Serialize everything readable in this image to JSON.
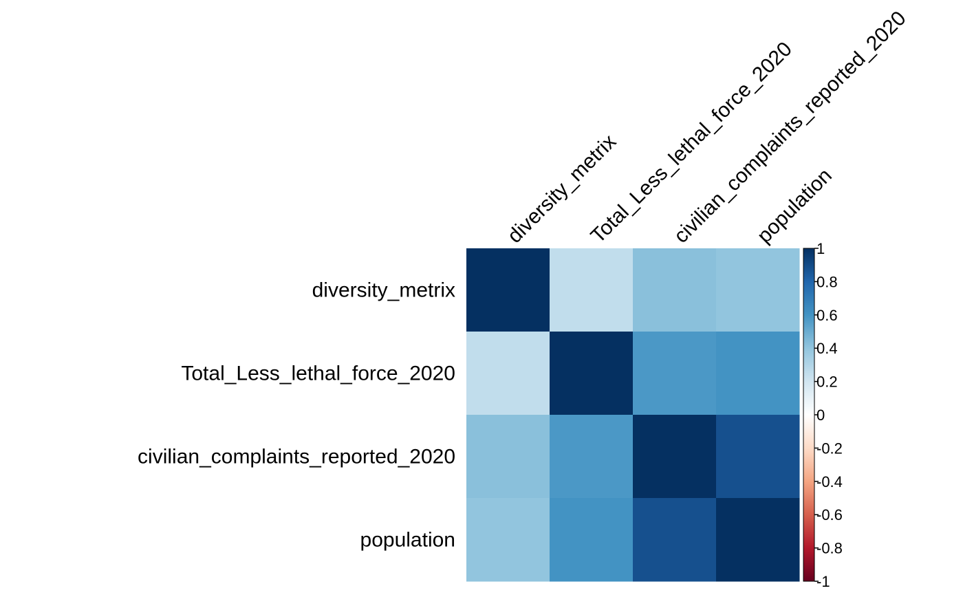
{
  "chart_data": {
    "type": "heatmap",
    "variables": [
      "diversity_metrix",
      "Total_Less_lethal_force_2020",
      "civilian_complaints_reported_2020",
      "population"
    ],
    "matrix": [
      [
        1.0,
        0.25,
        0.42,
        0.4
      ],
      [
        0.25,
        1.0,
        0.58,
        0.6
      ],
      [
        0.42,
        0.58,
        1.0,
        0.88
      ],
      [
        0.4,
        0.6,
        0.88,
        1.0
      ]
    ],
    "color_scale": {
      "range": [
        -1,
        1
      ],
      "stops": [
        {
          "value": -1.0,
          "color": "#67001f"
        },
        {
          "value": -0.8,
          "color": "#b2182b"
        },
        {
          "value": -0.6,
          "color": "#d6604d"
        },
        {
          "value": -0.4,
          "color": "#f4a582"
        },
        {
          "value": -0.2,
          "color": "#fddbc7"
        },
        {
          "value": 0.0,
          "color": "#ffffff"
        },
        {
          "value": 0.2,
          "color": "#d1e5f0"
        },
        {
          "value": 0.4,
          "color": "#92c5de"
        },
        {
          "value": 0.6,
          "color": "#4393c3"
        },
        {
          "value": 0.8,
          "color": "#2166ac"
        },
        {
          "value": 1.0,
          "color": "#053061"
        }
      ],
      "tick_labels": [
        "1",
        "0.8",
        "0.6",
        "0.4",
        "0.2",
        "0",
        "-0.2",
        "-0.4",
        "-0.6",
        "-0.8",
        "-1"
      ],
      "tick_values": [
        1,
        0.8,
        0.6,
        0.4,
        0.2,
        0,
        -0.2,
        -0.4,
        -0.6,
        -0.8,
        -1
      ]
    },
    "legend_placement": "right",
    "grid": false
  }
}
